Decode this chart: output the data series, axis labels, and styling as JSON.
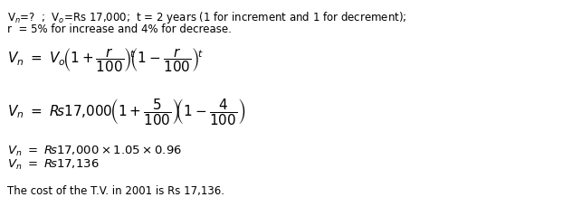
{
  "bg_color": "#ffffff",
  "text_color": "#000000",
  "figsize": [
    6.32,
    2.39
  ],
  "dpi": 100,
  "line1": "V$_{n}$=?  ;  V$_{o}$=Rs 17,000;  t = 2 years (1 for increment and 1 for decrement);",
  "line2": "r  = 5% for increase and 4% for decrease.",
  "line_final": "The cost of the T.V. in 2001 is Rs 17,136.",
  "font_size_text": 8.5,
  "font_size_math": 9.5
}
